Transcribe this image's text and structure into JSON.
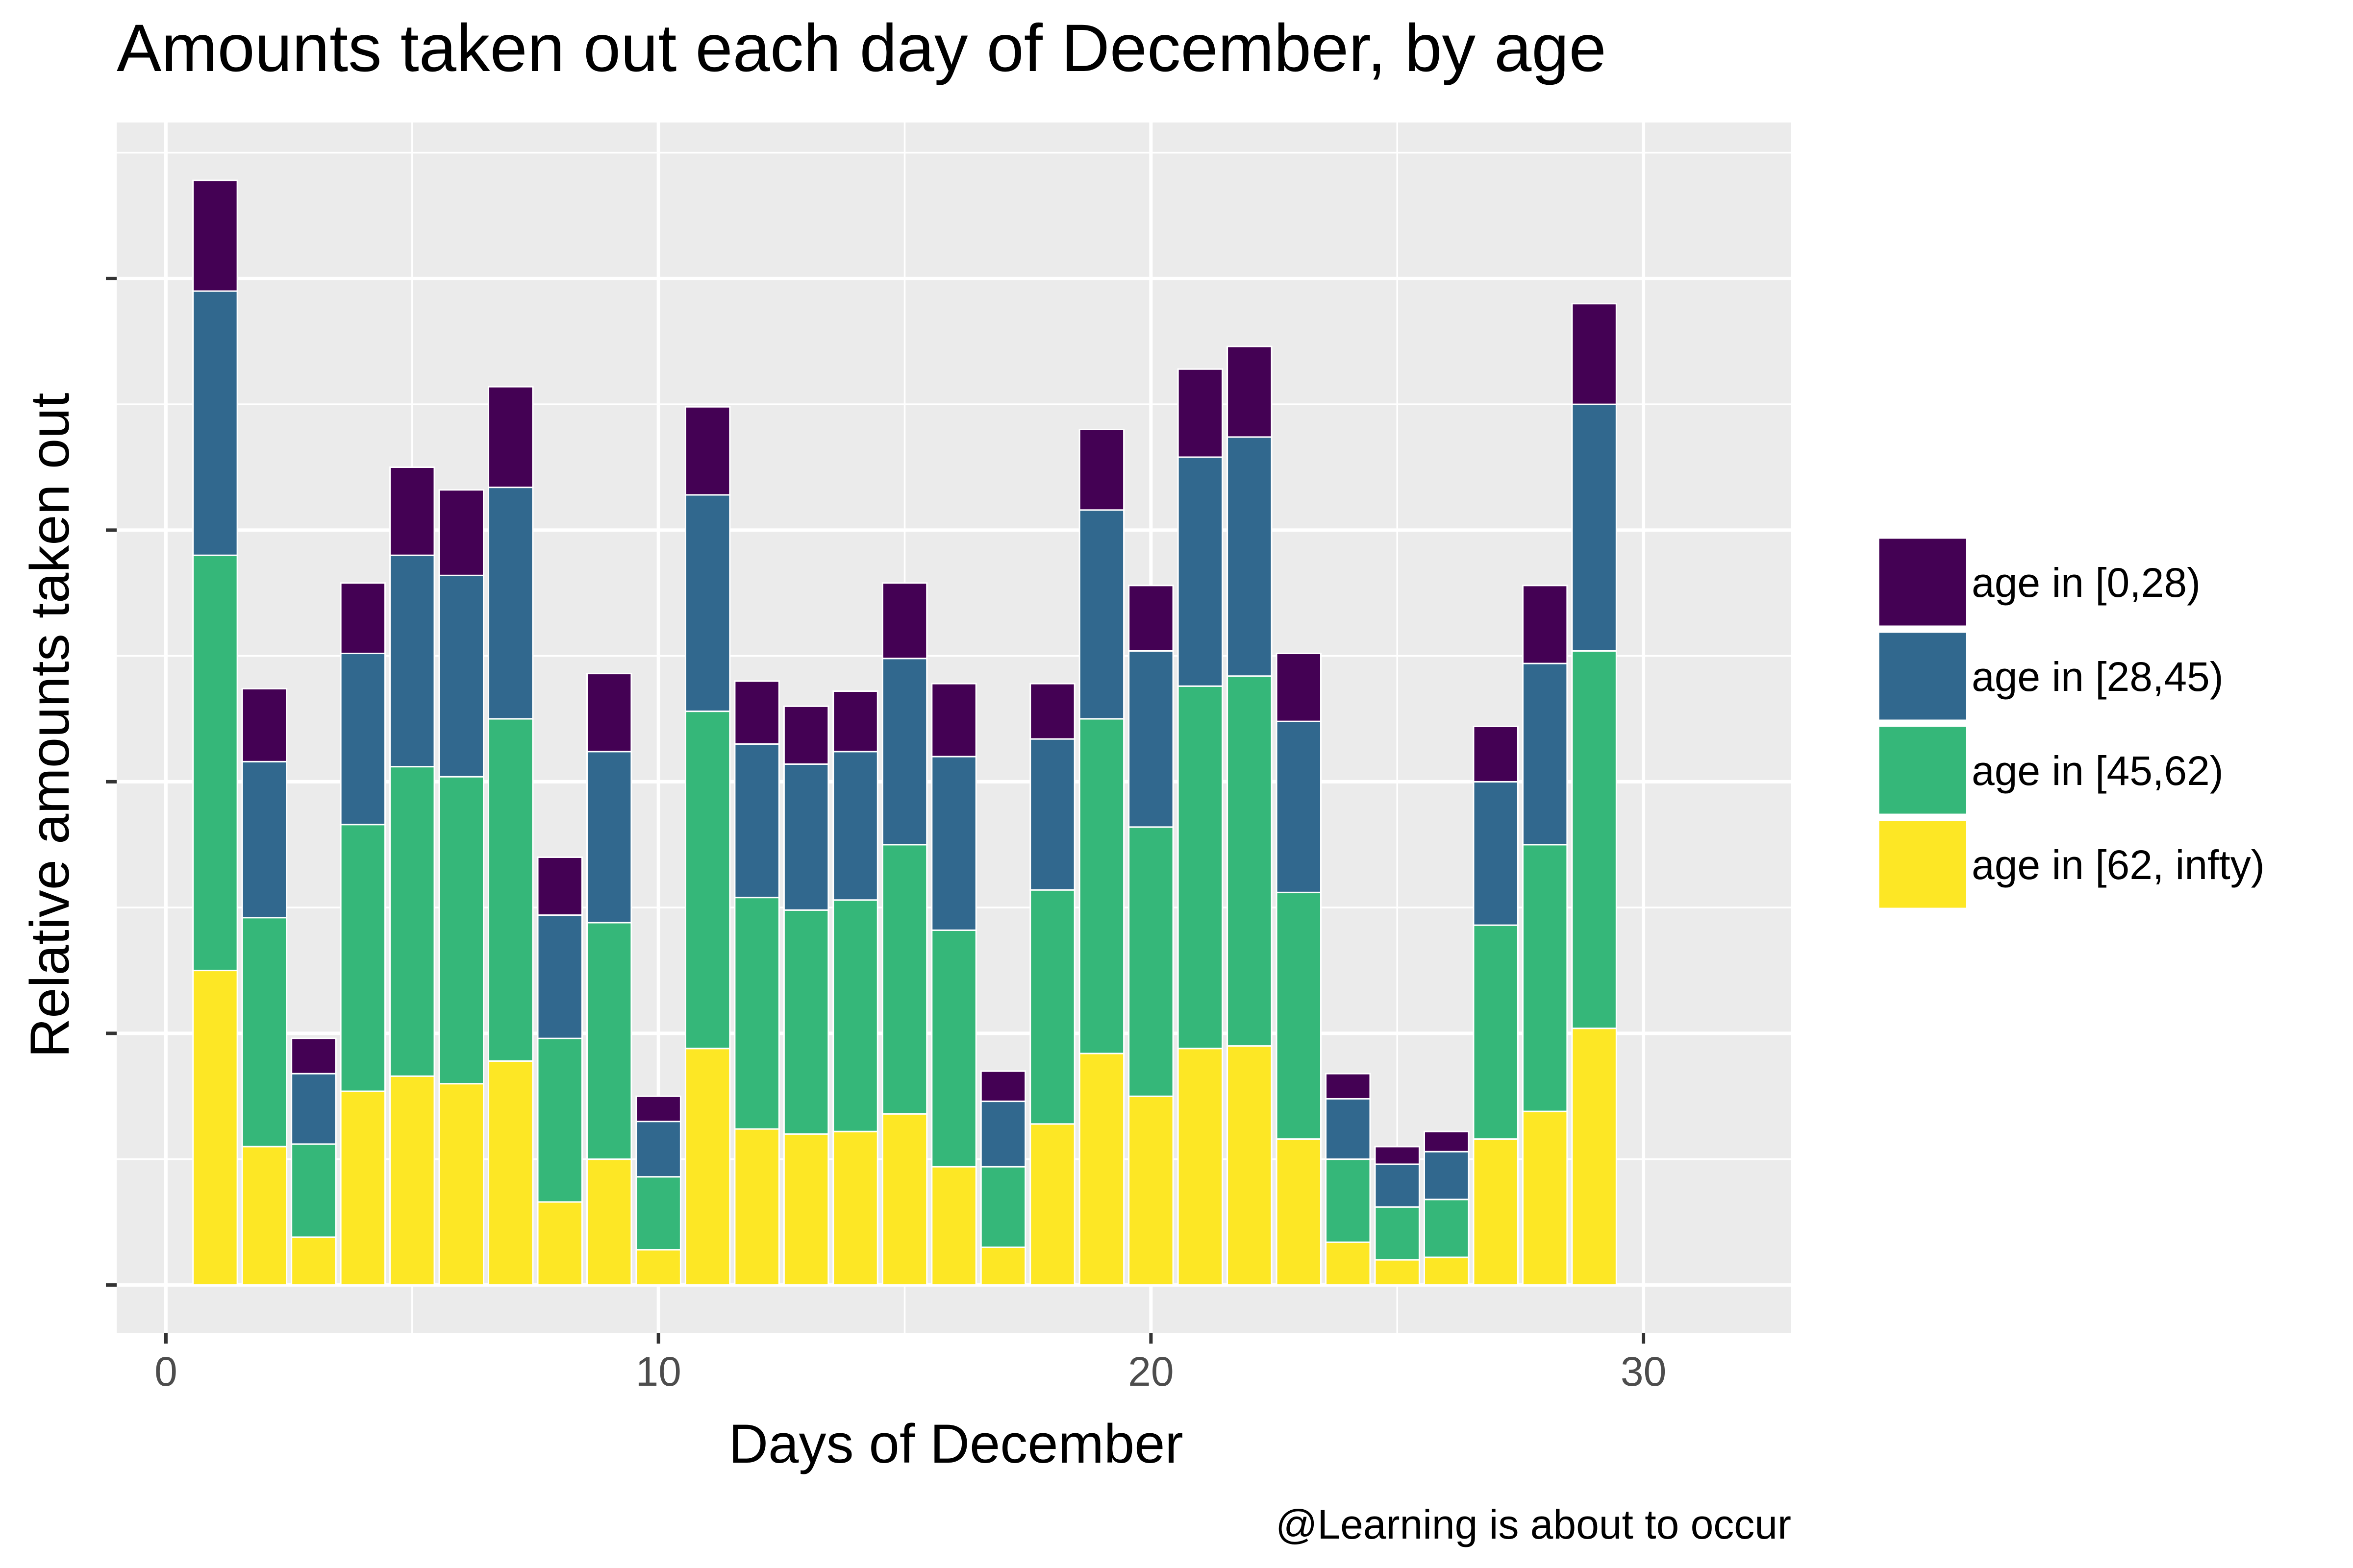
{
  "chart_data": {
    "type": "bar",
    "stacked": true,
    "title": "Amounts taken out each day of December, by age",
    "xlabel": "Days of December",
    "ylabel": "Relative amounts taken out",
    "caption": "@Learning is about to occur",
    "xlim": [
      -1,
      33
    ],
    "ylim": [
      -0.19,
      4.62
    ],
    "x_ticks": [
      0,
      10,
      20,
      30
    ],
    "y_ticks_labeled": false,
    "grid": true,
    "legend_position": "right",
    "x": [
      1,
      2,
      3,
      4,
      5,
      6,
      7,
      8,
      9,
      10,
      11,
      12,
      13,
      14,
      15,
      16,
      17,
      18,
      19,
      20,
      21,
      22,
      23,
      24,
      25,
      26,
      27,
      28,
      29
    ],
    "series": [
      {
        "name": "age in [62, infty)",
        "color": "#FDE725",
        "values": [
          1.25,
          0.55,
          0.19,
          0.77,
          0.83,
          0.8,
          0.89,
          0.33,
          0.5,
          0.14,
          0.94,
          0.62,
          0.6,
          0.61,
          0.68,
          0.47,
          0.15,
          0.64,
          0.92,
          0.75,
          0.94,
          0.95,
          0.58,
          0.17,
          0.1,
          0.11,
          0.58,
          0.69,
          1.02
        ]
      },
      {
        "name": "age in [45,62)",
        "color": "#35B779",
        "values": [
          1.65,
          0.91,
          0.37,
          1.06,
          1.23,
          1.22,
          1.36,
          0.65,
          0.94,
          0.29,
          1.34,
          0.92,
          0.89,
          0.92,
          1.07,
          0.94,
          0.32,
          0.93,
          1.33,
          1.07,
          1.44,
          1.47,
          0.98,
          0.33,
          0.21,
          0.23,
          0.85,
          1.06,
          1.5
        ]
      },
      {
        "name": "age in [28,45)",
        "color": "#31688E",
        "values": [
          1.05,
          0.62,
          0.28,
          0.68,
          0.84,
          0.8,
          0.92,
          0.49,
          0.68,
          0.22,
          0.86,
          0.61,
          0.58,
          0.59,
          0.74,
          0.69,
          0.26,
          0.6,
          0.83,
          0.7,
          0.91,
          0.95,
          0.68,
          0.24,
          0.17,
          0.19,
          0.57,
          0.72,
          0.98
        ]
      },
      {
        "name": "age in [0,28)",
        "color": "#440154",
        "values": [
          0.44,
          0.29,
          0.14,
          0.28,
          0.35,
          0.34,
          0.4,
          0.23,
          0.31,
          0.1,
          0.35,
          0.25,
          0.23,
          0.24,
          0.3,
          0.29,
          0.12,
          0.22,
          0.32,
          0.26,
          0.35,
          0.36,
          0.27,
          0.1,
          0.07,
          0.08,
          0.22,
          0.31,
          0.4
        ]
      }
    ]
  }
}
